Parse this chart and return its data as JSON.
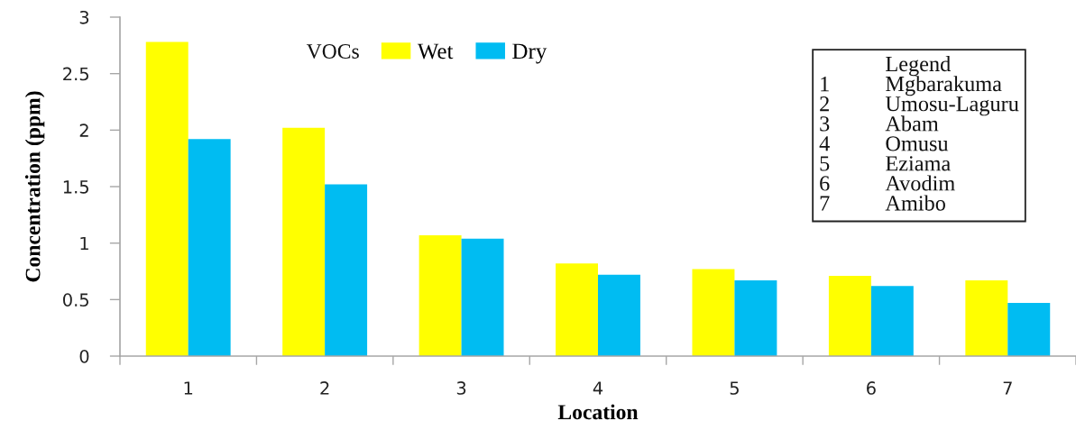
{
  "chart_data": {
    "type": "bar",
    "categories": [
      "1",
      "2",
      "3",
      "4",
      "5",
      "6",
      "7"
    ],
    "series": [
      {
        "name": "Wet",
        "color": "#ffff00",
        "values": [
          2.78,
          2.02,
          1.07,
          0.82,
          0.77,
          0.71,
          0.67
        ]
      },
      {
        "name": "Dry",
        "color": "#00bcf2",
        "values": [
          1.92,
          1.52,
          1.04,
          0.72,
          0.67,
          0.62,
          0.47
        ]
      }
    ],
    "xlabel": "Location",
    "ylabel": "Concentration (ppm)",
    "legend_title": "VOCs",
    "legend": "top",
    "ylim": [
      0,
      3
    ],
    "yticks": [
      0,
      0.5,
      1,
      1.5,
      2,
      2.5,
      3
    ],
    "annotations": [
      "Legend",
      "1 Mgbarakuma",
      "2 Umosu-Laguru",
      "3 Abam",
      "4 Omusu",
      "5 Eziama",
      "6 Avodim",
      "7 Amibo"
    ]
  }
}
